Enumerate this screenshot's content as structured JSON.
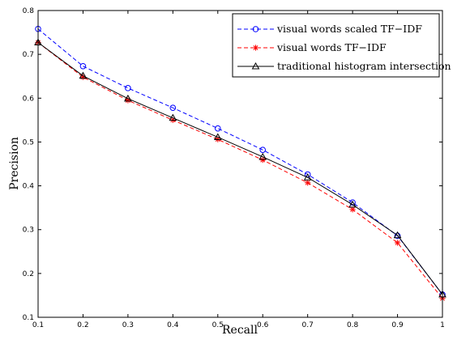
{
  "chart_data": {
    "type": "line",
    "title": "",
    "xlabel": "Recall",
    "ylabel": "Precision",
    "xlim": [
      0.1,
      1.0
    ],
    "ylim": [
      0.1,
      0.8
    ],
    "x": [
      0.1,
      0.2,
      0.3,
      0.4,
      0.5,
      0.6,
      0.7,
      0.8,
      0.9,
      1.0
    ],
    "xtick_labels": [
      "0.1",
      "0.2",
      "0.3",
      "0.4",
      "0.5",
      "0.6",
      "0.7",
      "0.8",
      "0.9",
      "1"
    ],
    "yticks": [
      0.1,
      0.2,
      0.3,
      0.4,
      0.5,
      0.6,
      0.7,
      0.8
    ],
    "ytick_labels": [
      "0.1",
      "0.2",
      "0.3",
      "0.4",
      "0.5",
      "0.6",
      "0.7",
      "0.8"
    ],
    "grid": false,
    "legend_position": "top-right",
    "series": [
      {
        "name": "visual words scaled TF−IDF",
        "values": [
          0.758,
          0.673,
          0.623,
          0.578,
          0.531,
          0.482,
          0.426,
          0.362,
          0.286,
          0.152
        ],
        "color": "#0000ff",
        "line_style": "dashed",
        "marker": "circle"
      },
      {
        "name": "visual words TF−IDF",
        "values": [
          0.727,
          0.648,
          0.595,
          0.55,
          0.506,
          0.459,
          0.407,
          0.346,
          0.27,
          0.143
        ],
        "color": "#ff0000",
        "line_style": "dashed",
        "marker": "star"
      },
      {
        "name": "traditional histogram intersection",
        "values": [
          0.727,
          0.651,
          0.599,
          0.555,
          0.511,
          0.466,
          0.419,
          0.357,
          0.287,
          0.152
        ],
        "color": "#000000",
        "line_style": "solid",
        "marker": "triangle"
      }
    ]
  }
}
